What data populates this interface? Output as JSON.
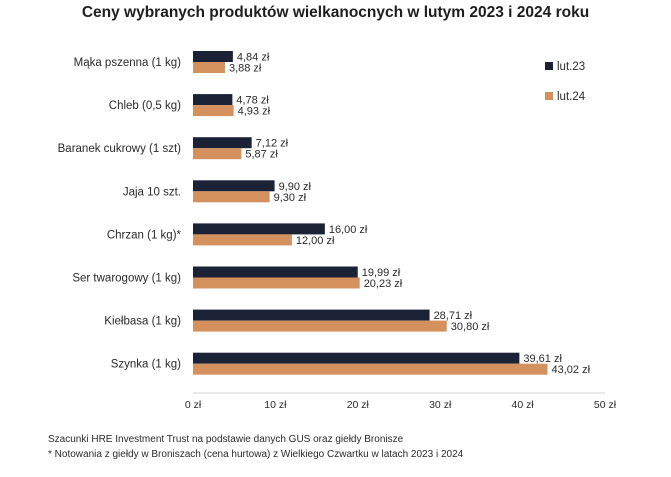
{
  "chart_data": {
    "type": "bar",
    "orientation": "horizontal",
    "title": "Ceny wybranych produktów wielkanocnych w lutym 2023 i 2024 roku",
    "categories": [
      "Mąka pszenna (1 kg)",
      "Chleb (0,5 kg)",
      "Baranek cukrowy (1 szt)",
      "Jaja 10 szt.",
      "Chrzan (1 kg)*",
      "Ser twarogowy (1 kg)",
      "Kiełbasa (1 kg)",
      "Szynka (1 kg)"
    ],
    "series": [
      {
        "name": "lut.23",
        "values": [
          4.84,
          4.78,
          7.12,
          9.9,
          16.0,
          19.99,
          28.71,
          39.61
        ],
        "labels": [
          "4,84 zł",
          "4,78 zł",
          "7,12 zł",
          "9,90 zł",
          "16,00 zł",
          "19,99 zł",
          "28,71 zł",
          "39,61 zł"
        ],
        "color": "#1c2236"
      },
      {
        "name": "lut.24",
        "values": [
          3.88,
          4.93,
          5.87,
          9.3,
          12.0,
          20.23,
          30.8,
          43.02
        ],
        "labels": [
          "3,88 zł",
          "4,93 zł",
          "5,87 zł",
          "9,30 zł",
          "12,00 zł",
          "20,23 zł",
          "30,80 zł",
          "43,02 zł"
        ],
        "color": "#d4915e"
      }
    ],
    "xlim": [
      0,
      50
    ],
    "xticks": [
      0,
      10,
      20,
      30,
      40,
      50
    ],
    "xtick_labels": [
      "0 zł",
      "10 zł",
      "20 zł",
      "30 zł",
      "40 zł",
      "50 zł"
    ],
    "grid": false,
    "legend_position": "top-right"
  },
  "footnotes": [
    "Szacunki HRE Investment Trust na podstawie danych GUS oraz giełdy Bronisze",
    "* Notowania z giełdy w Broniszach (cena hurtowa) z Wielkiego Czwartku w latach 2023 i 2024"
  ]
}
